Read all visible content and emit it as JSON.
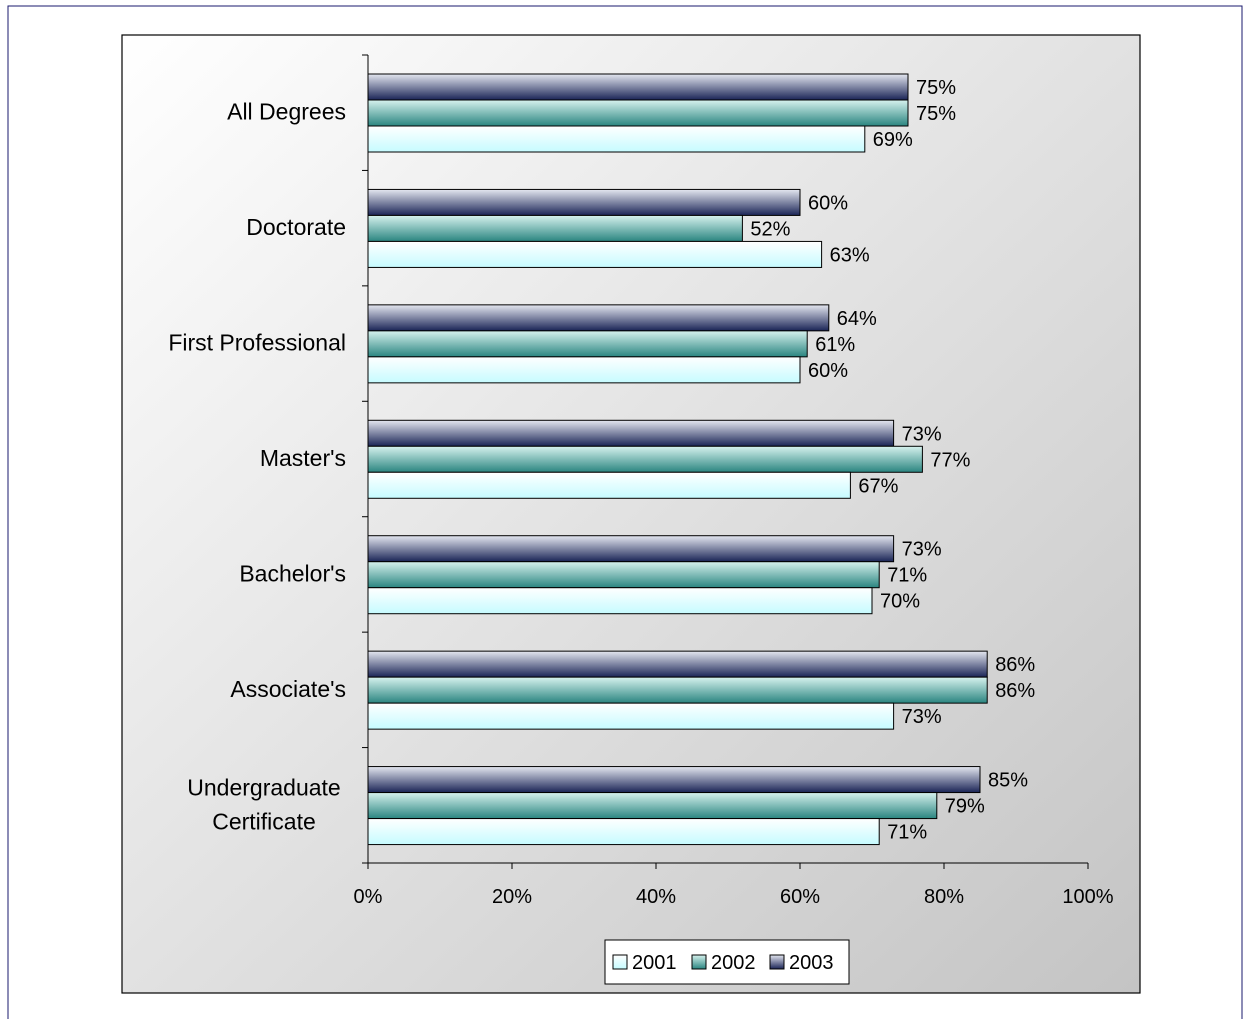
{
  "chart_data": {
    "type": "bar",
    "orientation": "horizontal",
    "title": "",
    "xlabel": "",
    "ylabel": "",
    "categories": [
      "All Degrees",
      "Doctorate",
      "First Professional",
      "Master's",
      "Bachelor's",
      "Associate's",
      "Undergraduate Certificate"
    ],
    "category_lines": [
      [
        "All Degrees"
      ],
      [
        "Doctorate"
      ],
      [
        "First Professional"
      ],
      [
        "Master's"
      ],
      [
        "Bachelor's"
      ],
      [
        "Associate's"
      ],
      [
        "Undergraduate",
        "Certificate"
      ]
    ],
    "series": [
      {
        "name": "2001",
        "values": [
          69,
          63,
          60,
          67,
          70,
          73,
          71
        ],
        "labels": [
          "69%",
          "63%",
          "60%",
          "67%",
          "70%",
          "73%",
          "71%"
        ],
        "color": "#ddfdff"
      },
      {
        "name": "2002",
        "values": [
          75,
          52,
          61,
          77,
          71,
          86,
          79
        ],
        "labels": [
          "75%",
          "52%",
          "61%",
          "77%",
          "71%",
          "86%",
          "79%"
        ],
        "color": "#2e8a86"
      },
      {
        "name": "2003",
        "values": [
          75,
          60,
          64,
          73,
          73,
          86,
          85
        ],
        "labels": [
          "75%",
          "60%",
          "64%",
          "73%",
          "73%",
          "86%",
          "85%"
        ],
        "color": "#1f2a5a"
      }
    ],
    "xlim": [
      0,
      100
    ],
    "ticks": [
      0,
      20,
      40,
      60,
      80,
      100
    ],
    "tick_labels": [
      "0%",
      "20%",
      "40%",
      "60%",
      "80%",
      "100%"
    ],
    "grid": false,
    "legend_position": "bottom",
    "colors": {
      "frame": "#000000",
      "plot_bg_start": "#ffffff",
      "plot_bg_end": "#c8c8c8",
      "text": "#000000",
      "outer_border": "#1a1a6e"
    }
  }
}
